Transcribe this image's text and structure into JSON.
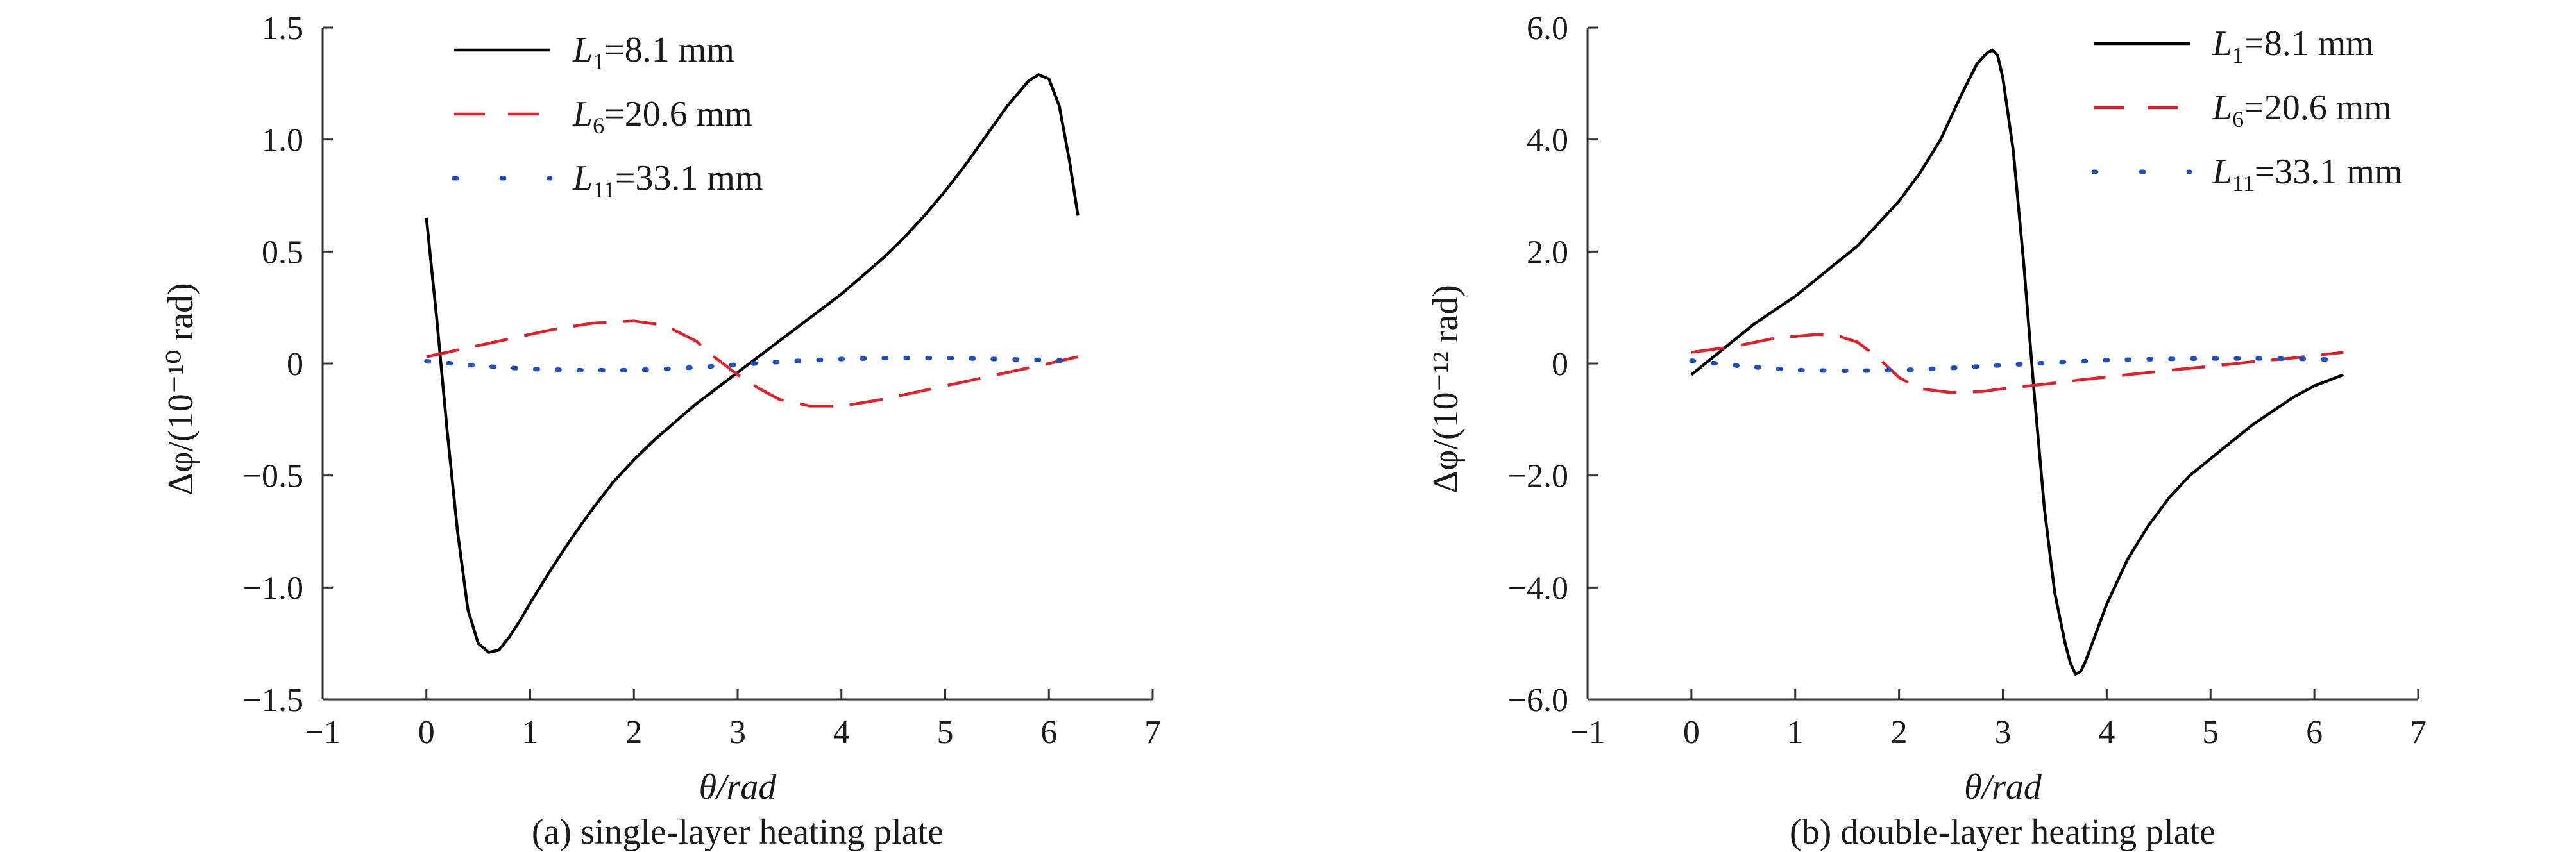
{
  "chart_data": [
    {
      "type": "line",
      "caption": "(a) single-layer heating plate",
      "xlabel": "θ/rad",
      "ylabel": "Δφ/(10⁻¹⁰ rad)",
      "xlim": [
        -1,
        7
      ],
      "ylim": [
        -1.5,
        1.5
      ],
      "xticks": [
        -1,
        0,
        1,
        2,
        3,
        4,
        5,
        6,
        7
      ],
      "yticks": [
        1.5,
        1.0,
        0.5,
        0,
        -0.5,
        -1.0,
        -1.5
      ],
      "ytick_labels": [
        "1.5",
        "1.0",
        "0.5",
        "0",
        "−0.5",
        "−1.0",
        "−1.5"
      ],
      "legend_position": "top-left",
      "series": [
        {
          "name": "L1=8.1 mm",
          "name_main": "L",
          "name_sub": "1",
          "name_rest": "=8.1 mm",
          "color": "#000000",
          "style": "solid",
          "x": [
            0,
            0.1,
            0.2,
            0.3,
            0.4,
            0.5,
            0.6,
            0.7,
            0.8,
            0.9,
            1.0,
            1.2,
            1.4,
            1.6,
            1.8,
            2.0,
            2.2,
            2.4,
            2.6,
            2.8,
            3.0,
            3.2,
            3.4,
            3.6,
            3.8,
            4.0,
            4.2,
            4.4,
            4.6,
            4.8,
            5.0,
            5.2,
            5.4,
            5.6,
            5.8,
            5.9,
            6.0,
            6.1,
            6.2,
            6.28
          ],
          "y": [
            0.65,
            0.2,
            -0.3,
            -0.75,
            -1.1,
            -1.25,
            -1.29,
            -1.28,
            -1.22,
            -1.15,
            -1.07,
            -0.92,
            -0.78,
            -0.65,
            -0.53,
            -0.43,
            -0.34,
            -0.26,
            -0.18,
            -0.11,
            -0.04,
            0.03,
            0.1,
            0.17,
            0.24,
            0.31,
            0.39,
            0.47,
            0.56,
            0.66,
            0.77,
            0.89,
            1.02,
            1.15,
            1.26,
            1.29,
            1.27,
            1.15,
            0.9,
            0.66
          ]
        },
        {
          "name": "L6=20.6 mm",
          "name_main": "L",
          "name_sub": "6",
          "name_rest": "=20.6 mm",
          "color": "#e0202a",
          "style": "dashed",
          "x": [
            0,
            0.4,
            0.8,
            1.2,
            1.6,
            2.0,
            2.3,
            2.6,
            2.8,
            3.0,
            3.2,
            3.4,
            3.7,
            4.0,
            4.4,
            4.8,
            5.2,
            5.6,
            6.0,
            6.28
          ],
          "y": [
            0.03,
            0.07,
            0.11,
            0.15,
            0.18,
            0.19,
            0.17,
            0.1,
            0.02,
            -0.05,
            -0.11,
            -0.16,
            -0.19,
            -0.19,
            -0.16,
            -0.12,
            -0.08,
            -0.04,
            0.0,
            0.03
          ]
        },
        {
          "name": "L11=33.1 mm",
          "name_main": "L",
          "name_sub": "11",
          "name_rest": "=33.1 mm",
          "color": "#1f4fbf",
          "style": "dotted",
          "x": [
            0,
            0.5,
            1.0,
            1.5,
            2.0,
            2.5,
            3.0,
            3.5,
            4.0,
            4.5,
            5.0,
            5.5,
            6.0,
            6.28
          ],
          "y": [
            0.01,
            -0.01,
            -0.025,
            -0.03,
            -0.03,
            -0.02,
            -0.005,
            0.01,
            0.02,
            0.025,
            0.025,
            0.02,
            0.015,
            0.01
          ]
        }
      ]
    },
    {
      "type": "line",
      "caption": "(b) double-layer heating plate",
      "xlabel": "θ/rad",
      "ylabel": "Δφ/(10⁻¹² rad)",
      "xlim": [
        -1,
        7
      ],
      "ylim": [
        -6.0,
        6.0
      ],
      "xticks": [
        -1,
        0,
        1,
        2,
        3,
        4,
        5,
        6,
        7
      ],
      "yticks": [
        6.0,
        4.0,
        2.0,
        0,
        -2.0,
        -4.0,
        -6.0
      ],
      "ytick_labels": [
        "6.0",
        "4.0",
        "2.0",
        "0",
        "−2.0",
        "−4.0",
        "−6.0"
      ],
      "legend_position": "top-right",
      "series": [
        {
          "name": "L1=8.1 mm",
          "name_main": "L",
          "name_sub": "1",
          "name_rest": "=8.1 mm",
          "color": "#000000",
          "style": "solid",
          "x": [
            0,
            0.2,
            0.4,
            0.6,
            0.8,
            1.0,
            1.2,
            1.4,
            1.6,
            1.8,
            2.0,
            2.2,
            2.4,
            2.6,
            2.75,
            2.85,
            2.9,
            2.95,
            3.0,
            3.1,
            3.2,
            3.3,
            3.4,
            3.5,
            3.6,
            3.65,
            3.7,
            3.75,
            3.8,
            3.9,
            4.0,
            4.2,
            4.4,
            4.6,
            4.8,
            5.0,
            5.2,
            5.4,
            5.6,
            5.8,
            6.0,
            6.28
          ],
          "y": [
            -0.2,
            0.1,
            0.4,
            0.7,
            0.95,
            1.2,
            1.5,
            1.8,
            2.1,
            2.5,
            2.9,
            3.4,
            4.0,
            4.8,
            5.35,
            5.55,
            5.6,
            5.5,
            5.1,
            3.8,
            1.8,
            -0.5,
            -2.6,
            -4.1,
            -5.0,
            -5.35,
            -5.55,
            -5.5,
            -5.3,
            -4.8,
            -4.3,
            -3.5,
            -2.9,
            -2.4,
            -2.0,
            -1.7,
            -1.4,
            -1.1,
            -0.85,
            -0.6,
            -0.4,
            -0.2
          ]
        },
        {
          "name": "L6=20.6 mm",
          "name_main": "L",
          "name_sub": "6",
          "name_rest": "=20.6 mm",
          "color": "#e0202a",
          "style": "dashed",
          "x": [
            0,
            0.4,
            0.8,
            1.2,
            1.4,
            1.6,
            1.8,
            2.0,
            2.2,
            2.5,
            2.8,
            3.0,
            3.4,
            3.8,
            4.2,
            4.6,
            5.0,
            5.4,
            5.8,
            6.28
          ],
          "y": [
            0.2,
            0.3,
            0.45,
            0.52,
            0.5,
            0.38,
            0.1,
            -0.25,
            -0.45,
            -0.52,
            -0.5,
            -0.45,
            -0.37,
            -0.28,
            -0.2,
            -0.12,
            -0.05,
            0.03,
            0.1,
            0.2
          ]
        },
        {
          "name": "L11=33.1 mm",
          "name_main": "L",
          "name_sub": "11",
          "name_rest": "=33.1 mm",
          "color": "#1f4fbf",
          "style": "dotted",
          "x": [
            0,
            0.5,
            1.0,
            1.5,
            2.0,
            2.5,
            3.0,
            3.5,
            4.0,
            4.5,
            5.0,
            5.5,
            6.0,
            6.28
          ],
          "y": [
            0.05,
            -0.05,
            -0.12,
            -0.13,
            -0.12,
            -0.08,
            -0.03,
            0.02,
            0.06,
            0.08,
            0.09,
            0.09,
            0.08,
            0.06
          ]
        }
      ]
    }
  ]
}
